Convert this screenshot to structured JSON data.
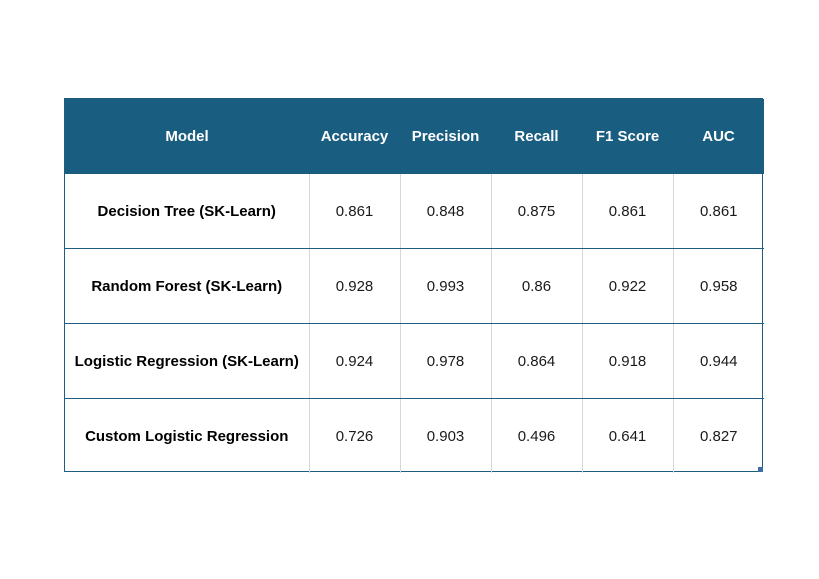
{
  "table": {
    "headers": [
      "Model",
      "Accuracy",
      "Precision",
      "Recall",
      "F1 Score",
      "AUC"
    ],
    "rows": [
      [
        "Decision Tree (SK-Learn)",
        "0.861",
        "0.848",
        "0.875",
        "0.861",
        "0.861"
      ],
      [
        "Random Forest (SK-Learn)",
        "0.928",
        "0.993",
        "0.86",
        "0.922",
        "0.958"
      ],
      [
        "Logistic Regression (SK-Learn)",
        "0.924",
        "0.978",
        "0.864",
        "0.918",
        "0.944"
      ],
      [
        "Custom Logistic Regression",
        "0.726",
        "0.903",
        "0.496",
        "0.641",
        "0.827"
      ]
    ]
  },
  "colors": {
    "header_bg": "#195d80",
    "header_text": "#ffffff",
    "border": "#1f5e80",
    "inner_border": "#d6d6d6"
  }
}
